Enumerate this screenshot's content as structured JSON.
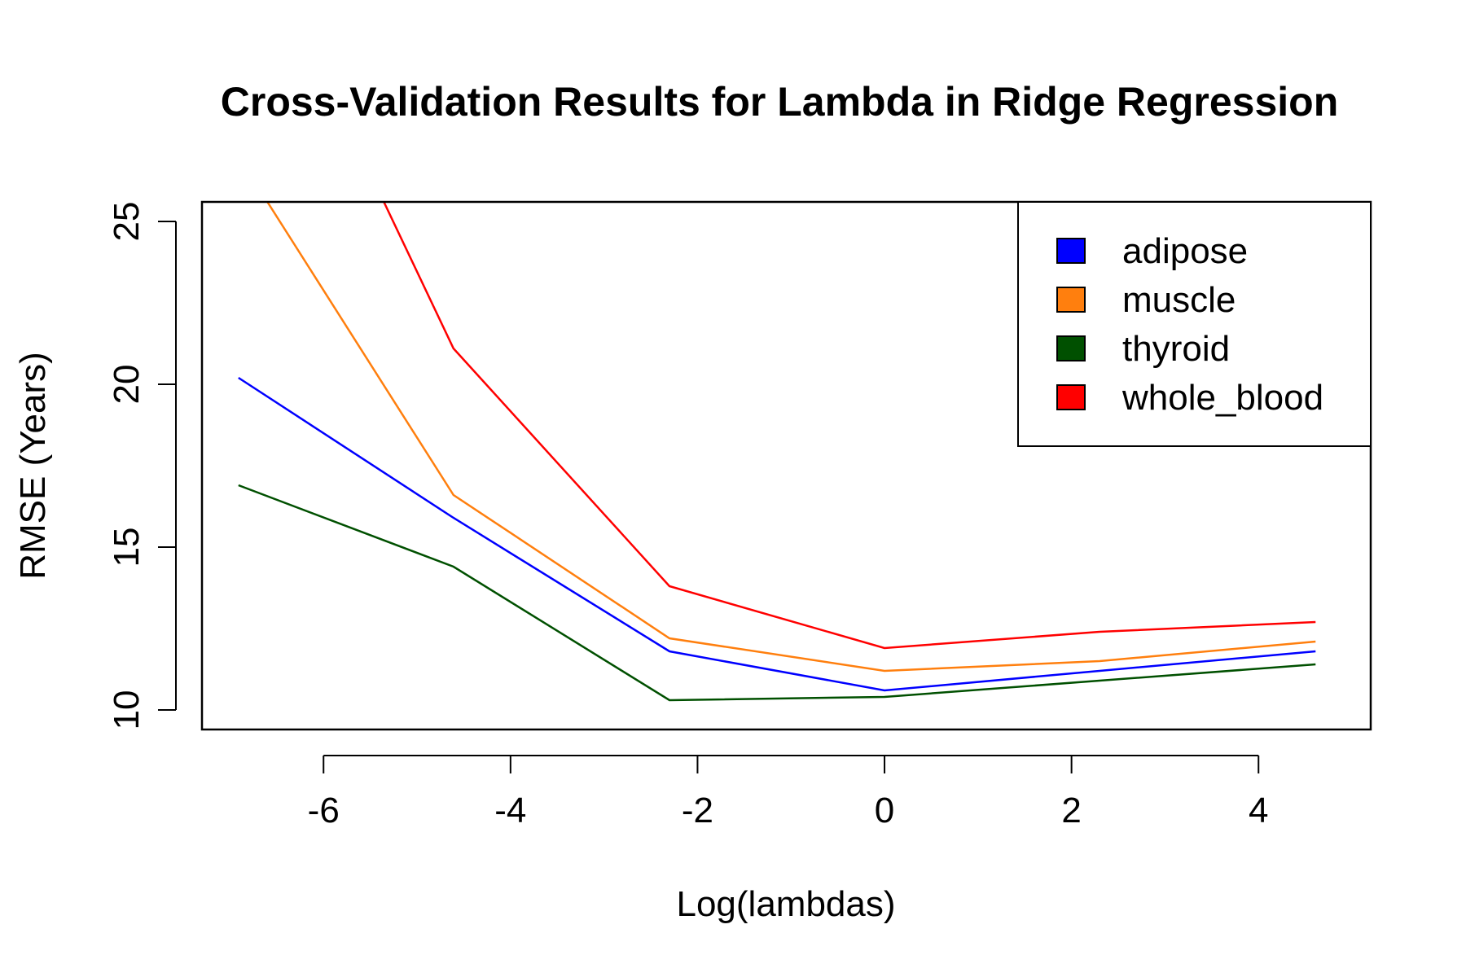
{
  "chart_data": {
    "type": "line",
    "title": "Cross-Validation Results for Lambda in Ridge Regression",
    "xlabel": "Log(lambdas)",
    "ylabel": "RMSE (Years)",
    "xlim": [
      -7.3,
      5.2
    ],
    "ylim": [
      9.4,
      25.6
    ],
    "xticks": [
      -6,
      -4,
      -2,
      0,
      2,
      4
    ],
    "xtick_labels": [
      "-6",
      "-4",
      "-2",
      "0",
      "2",
      "4"
    ],
    "yticks": [
      10,
      15,
      20,
      25
    ],
    "ytick_labels": [
      "10",
      "15",
      "20",
      "25"
    ],
    "x": [
      -6.91,
      -4.61,
      -2.3,
      0.0,
      2.3,
      4.61
    ],
    "series": [
      {
        "name": "adipose",
        "color": "#0000ff",
        "values": [
          20.2,
          15.9,
          11.8,
          10.6,
          11.2,
          11.8
        ]
      },
      {
        "name": "muscle",
        "color": "#ff7f0e",
        "values": [
          27.0,
          16.6,
          12.2,
          11.2,
          11.5,
          12.1
        ]
      },
      {
        "name": "thyroid",
        "color": "#005000",
        "values": [
          16.9,
          14.4,
          10.3,
          10.4,
          10.9,
          11.4
        ]
      },
      {
        "name": "whole_blood",
        "color": "#ff0000",
        "values": [
          35.0,
          21.1,
          13.8,
          11.9,
          12.4,
          12.7
        ]
      }
    ],
    "legend_position": "top-right",
    "grid": false
  }
}
